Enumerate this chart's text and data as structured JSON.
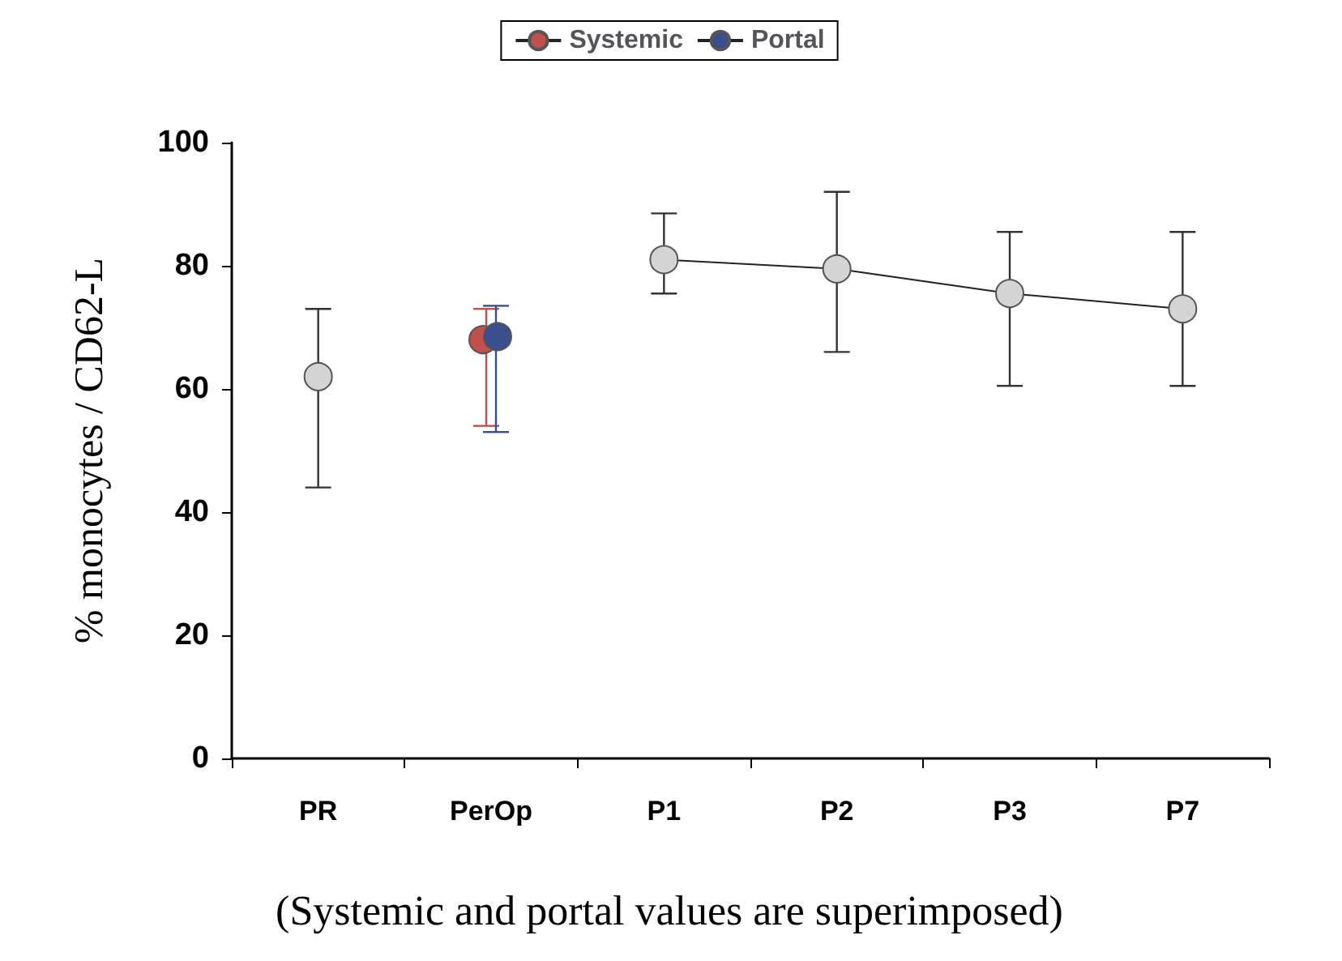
{
  "chart_data": {
    "type": "line",
    "ylabel": "% monocytes / CD62-L",
    "categories": [
      "PR",
      "PerOp",
      "P1",
      "P2",
      "P3",
      "P7"
    ],
    "ylim": [
      0,
      100
    ],
    "yticks": [
      0,
      20,
      40,
      60,
      80,
      100
    ],
    "grid": false,
    "legend": "top",
    "marker": "circle",
    "line_style": "solid",
    "annotations": [
      "(Systemic and portal values are superimposed)"
    ],
    "series": [
      {
        "color": "#d4d4d4",
        "values": [
          62,
          null,
          81,
          79.5,
          75.5,
          73
        ],
        "errors": [
          [
            44,
            73
          ],
          null,
          [
            75.5,
            88.5
          ],
          [
            66,
            92
          ],
          [
            60.5,
            85.5
          ],
          [
            60.5,
            85.5
          ]
        ]
      },
      {
        "name": "Systemic",
        "color": "#c0504d",
        "values": [
          null,
          68,
          null,
          null,
          null,
          null
        ],
        "errors": [
          null,
          [
            54,
            73
          ],
          null,
          null,
          null,
          null
        ]
      },
      {
        "name": "Portal",
        "color": "#3a4f8c",
        "values": [
          null,
          68.5,
          null,
          null,
          null,
          null
        ],
        "errors": [
          null,
          [
            53,
            73.5
          ],
          null,
          null,
          null,
          null
        ]
      }
    ]
  }
}
